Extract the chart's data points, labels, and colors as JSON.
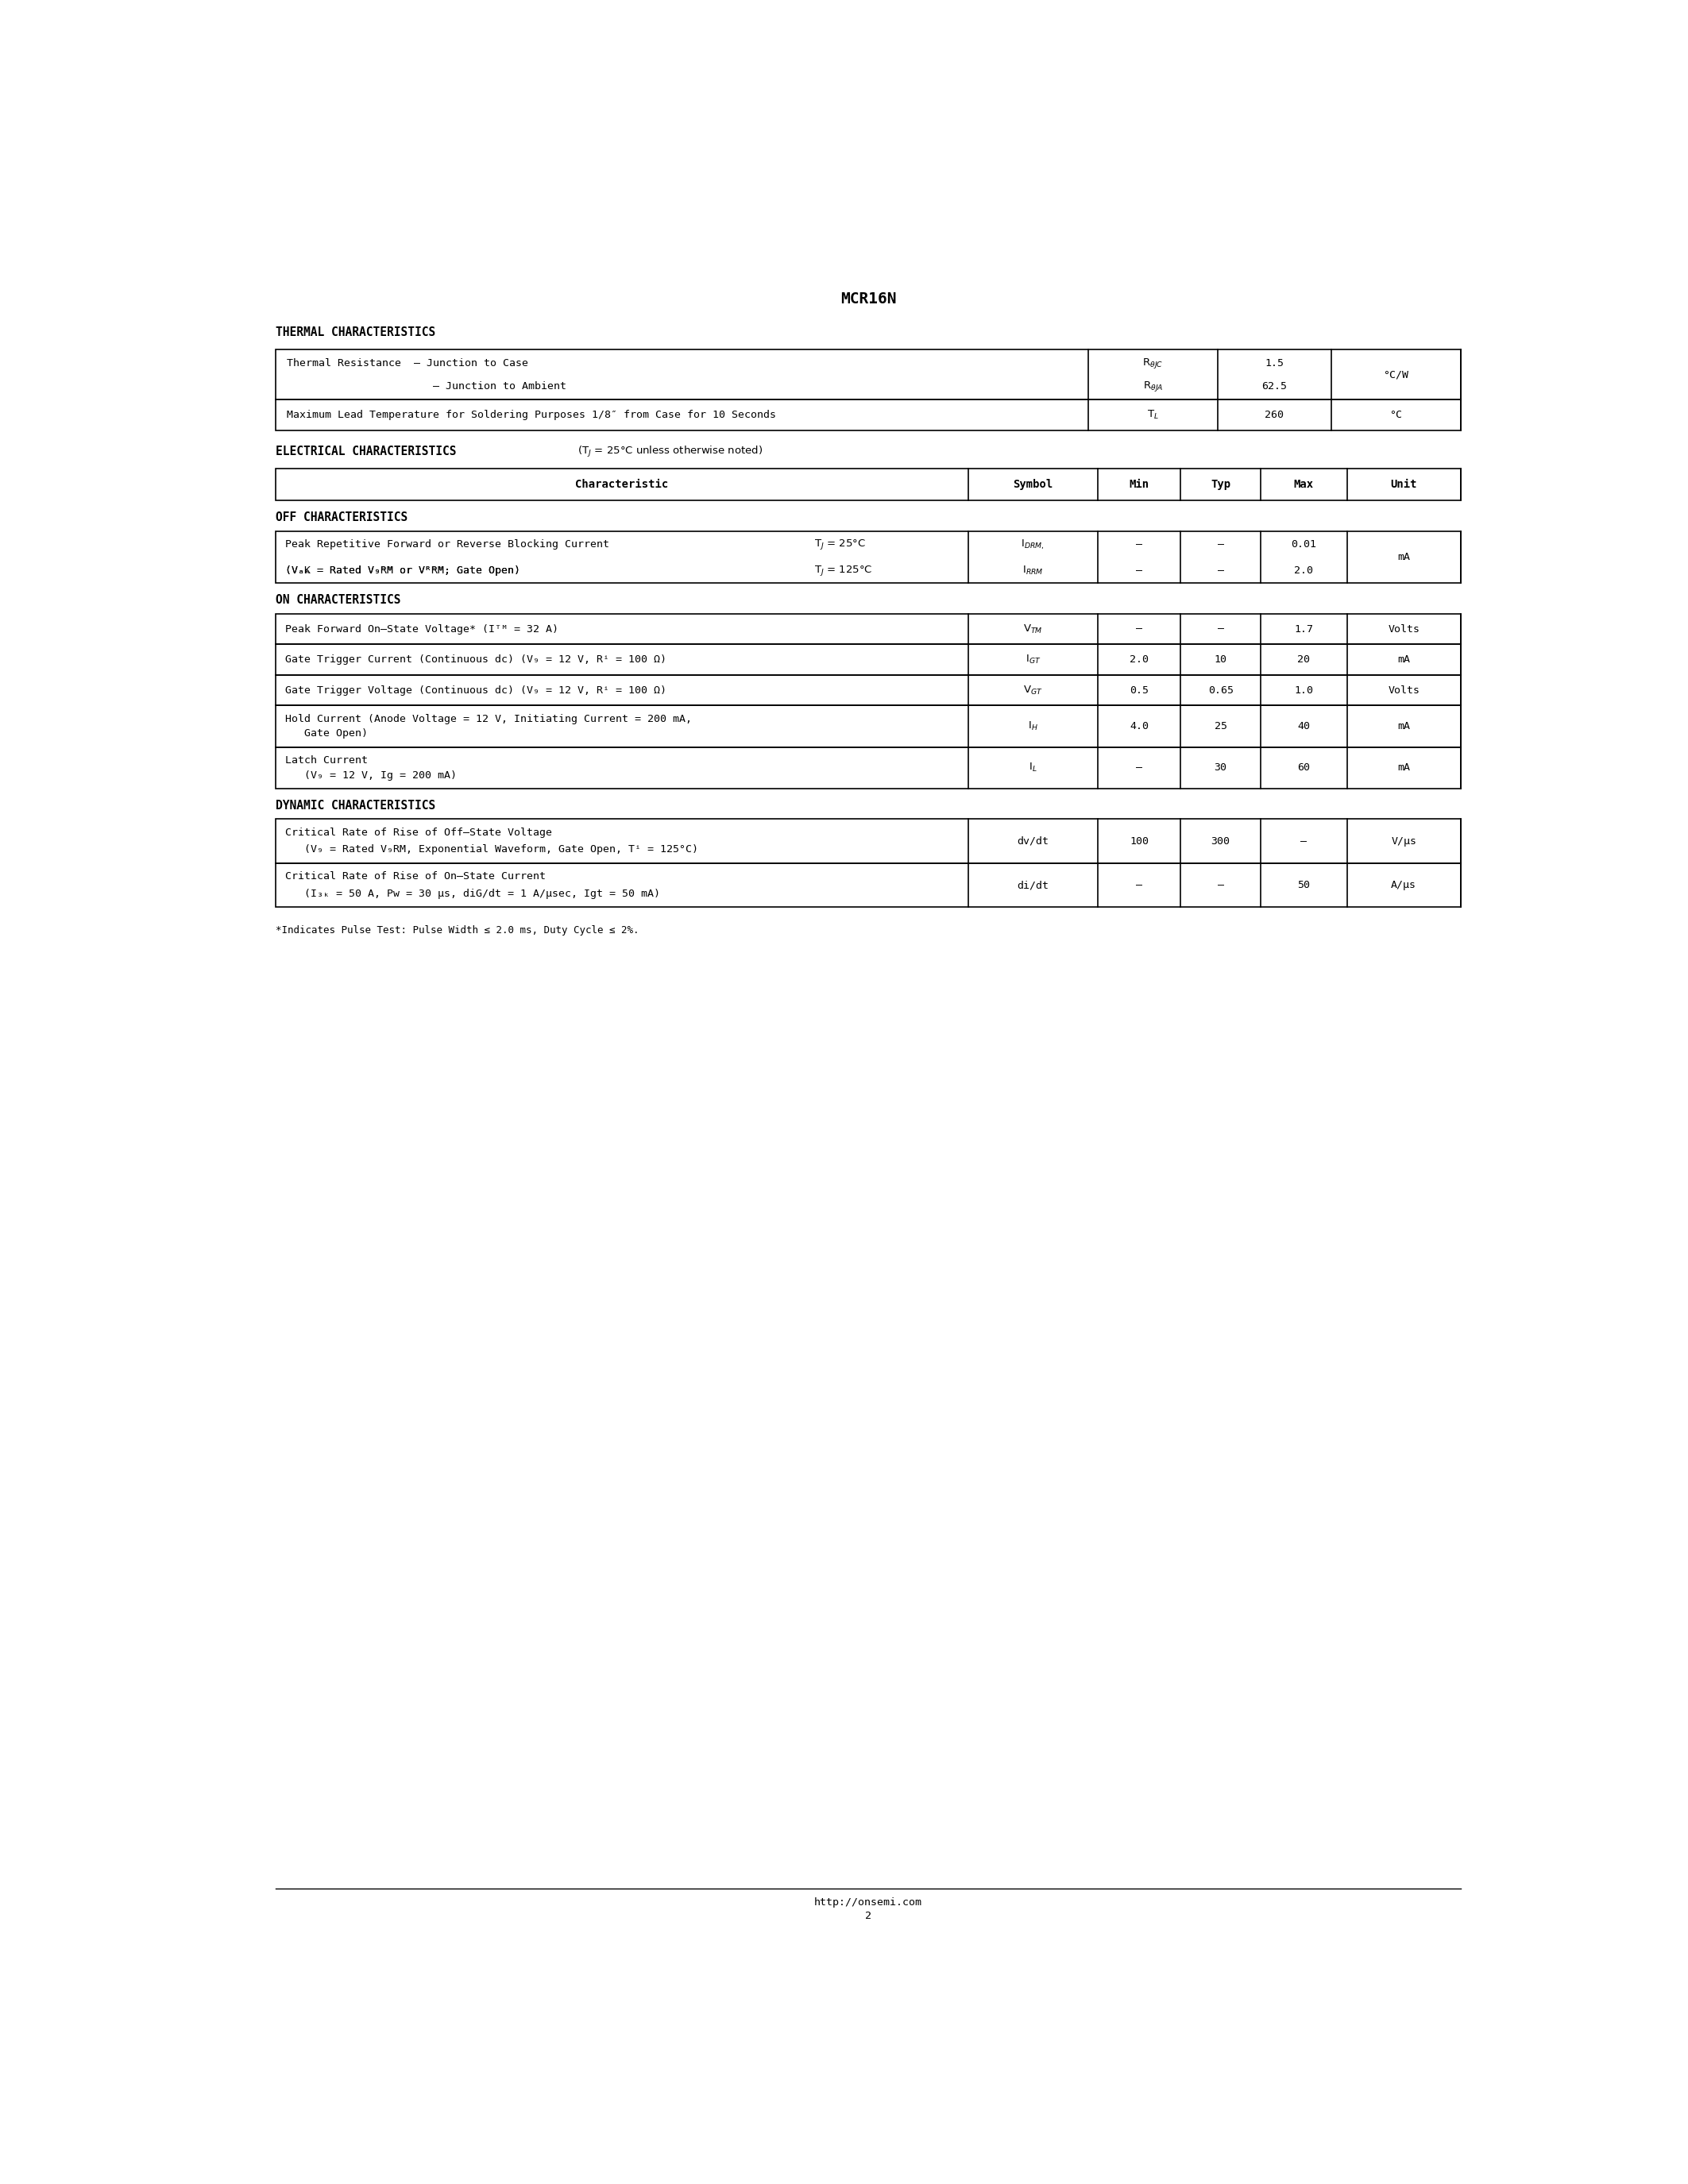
{
  "title": "MCR16N",
  "background_color": "#ffffff",
  "footer_url": "http://onsemi.com",
  "footer_page": "2",
  "thermal_section_title": "THERMAL CHARACTERISTICS",
  "elec_section_title": "ELECTRICAL CHARACTERISTICS",
  "elec_section_subtitle": " (T",
  "elec_section_subtitle2": " = 25°C unless otherwise noted)",
  "table_headers": [
    "Characteristic",
    "Symbol",
    "Min",
    "Typ",
    "Max",
    "Unit"
  ],
  "off_title": "OFF CHARACTERISTICS",
  "on_title": "ON CHARACTERISTICS",
  "dyn_title": "DYNAMIC CHARACTERISTICS",
  "footnote": "*Indicates Pulse Test: Pulse Width ≤ 2.0 ms, Duty Cycle ≤ 2%."
}
